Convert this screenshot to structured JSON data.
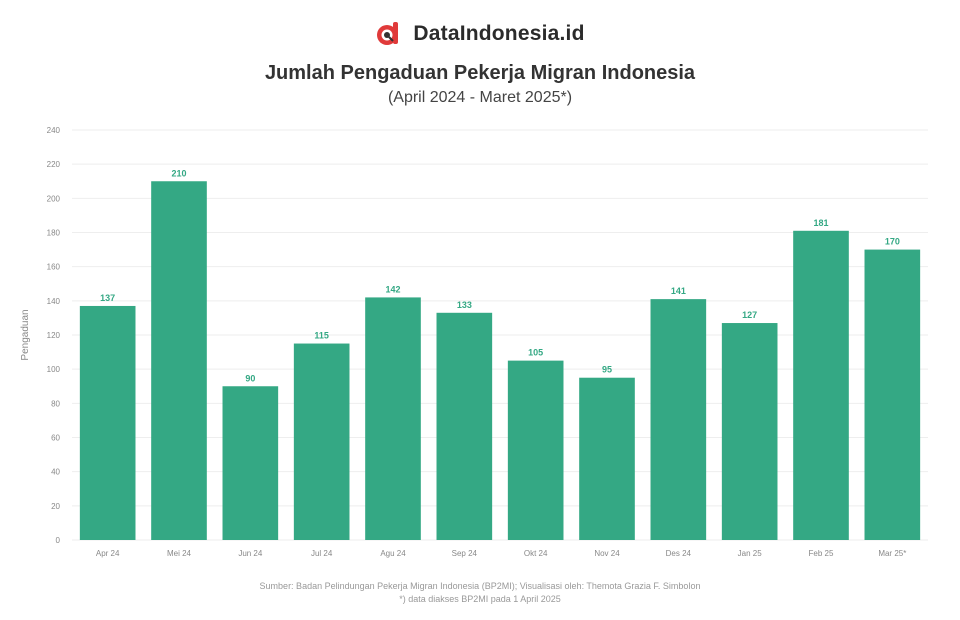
{
  "brand": {
    "name": "DataIndonesia.id",
    "logo_icon": "dataindonesia-logo-icon",
    "logo_color": "#e03a3a"
  },
  "colors": {
    "bar": "#34a884",
    "grid": "#eeeeee",
    "axis_text": "#888888"
  },
  "chart_data": {
    "type": "bar",
    "title": "Jumlah Pengaduan Pekerja Migran Indonesia",
    "subtitle": "(April 2024 - Maret 2025*)",
    "ylabel": "Pengaduan",
    "xlabel": "",
    "ylim": [
      0,
      240
    ],
    "yticks": [
      0,
      20,
      40,
      60,
      80,
      100,
      120,
      140,
      160,
      180,
      200,
      220,
      240
    ],
    "grid": true,
    "legend": "none",
    "categories": [
      "Apr 24",
      "Mei 24",
      "Jun 24",
      "Jul 24",
      "Agu 24",
      "Sep 24",
      "Okt 24",
      "Nov 24",
      "Des 24",
      "Jan 25",
      "Feb 25",
      "Mar 25*"
    ],
    "values": [
      137,
      210,
      90,
      115,
      142,
      133,
      105,
      95,
      141,
      127,
      181,
      170
    ],
    "data_labels": [
      "137",
      "210",
      "90",
      "115",
      "142",
      "133",
      "105",
      "95",
      "141",
      "127",
      "181",
      "170"
    ]
  },
  "source": {
    "line1": "Sumber: Badan Pelindungan Pekerja Migran Indonesia (BP2MI); Visualisasi oleh: Themota Grazia F. Simbolon",
    "line2": "*) data diakses BP2MI pada 1 April 2025"
  }
}
